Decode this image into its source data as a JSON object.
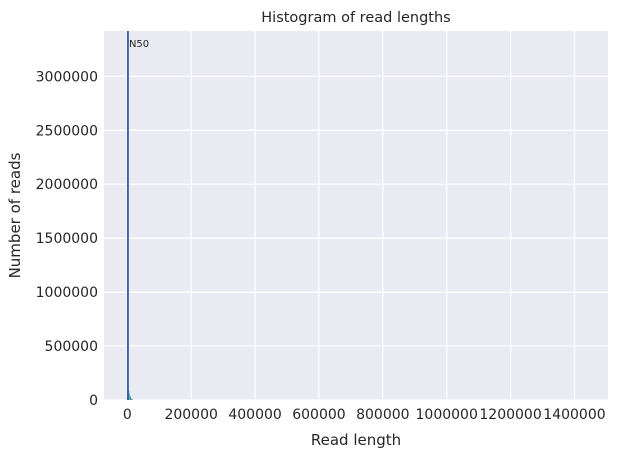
{
  "chart_data": {
    "type": "bar",
    "title": "Histogram of read lengths",
    "xlabel": "Read length",
    "ylabel": "Number of reads",
    "xlim": [
      -73000,
      1505000
    ],
    "ylim": [
      0,
      3420000
    ],
    "xticks": [
      0,
      200000,
      400000,
      600000,
      800000,
      1000000,
      1200000,
      1400000
    ],
    "xtick_labels": [
      "0",
      "200000",
      "400000",
      "600000",
      "800000",
      "1000000",
      "1200000",
      "1400000"
    ],
    "yticks": [
      0,
      500000,
      1000000,
      1500000,
      2000000,
      2500000,
      3000000
    ],
    "ytick_labels": [
      "0",
      "500000",
      "1000000",
      "1500000",
      "2000000",
      "2500000",
      "3000000"
    ],
    "grid": true,
    "bins": [
      {
        "x0": 0,
        "x1": 2000,
        "count": 380000
      },
      {
        "x0": 2000,
        "x1": 4000,
        "count": 150000
      },
      {
        "x0": 4000,
        "x1": 6000,
        "count": 90000
      },
      {
        "x0": 6000,
        "x1": 8000,
        "count": 60000
      },
      {
        "x0": 8000,
        "x1": 10000,
        "count": 40000
      },
      {
        "x0": 10000,
        "x1": 12000,
        "count": 25000
      },
      {
        "x0": 12000,
        "x1": 14000,
        "count": 15000
      },
      {
        "x0": 14000,
        "x1": 16000,
        "count": 8000
      },
      {
        "x0": 16000,
        "x1": 18000,
        "count": 4000
      }
    ],
    "reference_line": {
      "label": "N50",
      "x": 2000
    },
    "colors": {
      "bars": "#3a9a9a",
      "line": "#2c5f9e",
      "background": "#eaeaf2",
      "grid": "#ffffff"
    }
  }
}
